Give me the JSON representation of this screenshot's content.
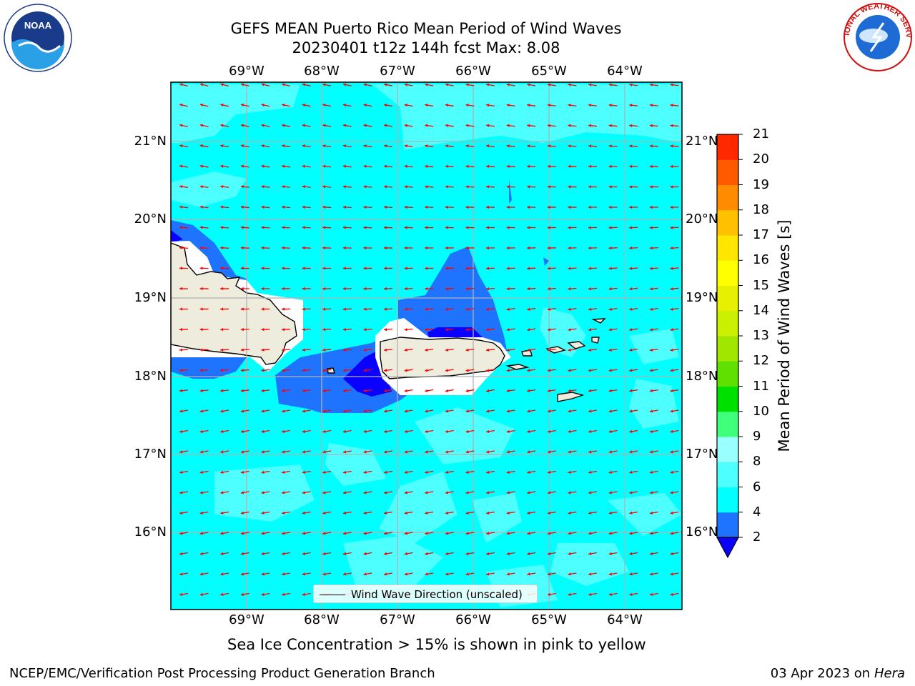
{
  "title": {
    "line1": "GEFS MEAN Puerto Rico Mean Period of Wind Waves",
    "line2": "20230401 t12z 144h fcst   Max: 8.08"
  },
  "axes": {
    "lon_labels": [
      "69°W",
      "68°W",
      "67°W",
      "66°W",
      "65°W",
      "64°W"
    ],
    "lat_labels": [
      "21°N",
      "20°N",
      "19°N",
      "18°N",
      "17°N",
      "16°N"
    ]
  },
  "colorbar": {
    "title": "Mean Period of Wind Waves [s]",
    "ticks": [
      "2",
      "4",
      "6",
      "8",
      "9",
      "10",
      "11",
      "12",
      "13",
      "14",
      "15",
      "16",
      "17",
      "18",
      "19",
      "20",
      "21"
    ],
    "colors": [
      "#0a00ff",
      "#1f74ff",
      "#00ffff",
      "#4dffff",
      "#99ffff",
      "#40ff7a",
      "#00e000",
      "#60e000",
      "#a0e600",
      "#c8f000",
      "#e6f000",
      "#ffff00",
      "#ffe600",
      "#ffc000",
      "#ff8c00",
      "#ff5a00",
      "#ff2800",
      "#ff0000"
    ]
  },
  "map_colors": {
    "ocean": "#00ffff",
    "light_patch": "#4dffff",
    "mid_blue": "#1f74ff",
    "deep_blue": "#0a00ff",
    "land": "#eeecdc",
    "arrows": "#ff0000",
    "grid": "#b0b0b0"
  },
  "legend": {
    "label": "Wind Wave Direction (unscaled)"
  },
  "footnote": "Sea Ice Concentration > 15% is shown in pink to yellow",
  "footer": {
    "left": "NCEP/EMC/Verification Post Processing Product Generation Branch",
    "right_prefix": "03 Apr 2023 on ",
    "right_host": "Hera"
  },
  "logos": {
    "noaa_text": "NOAA",
    "nws_text": "NATIONAL WEATHER SERVICE"
  }
}
